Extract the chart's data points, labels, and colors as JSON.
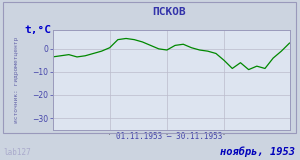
{
  "title": "ПСКОВ",
  "ylabel": "t,°C",
  "xlabel_range": "01.11.1953 – 30.11.1953",
  "footer": "ноябрь, 1953",
  "watermark": "lab127",
  "source_text": "источник: гидрометцентр",
  "line_color": "#008800",
  "bg_color": "#ccd4e0",
  "plot_bg_color": "#dde4f0",
  "border_color": "#9999bb",
  "title_color": "#3333aa",
  "footer_color": "#0000bb",
  "ylabel_color": "#0000cc",
  "source_color": "#6666aa",
  "tick_color": "#4444aa",
  "watermark_color": "#aaaacc",
  "grid_color": "#bbbbcc",
  "ylim": [
    -35,
    8
  ],
  "yticks": [
    0,
    -10,
    -20,
    -30
  ],
  "days": [
    1,
    2,
    3,
    4,
    5,
    6,
    7,
    8,
    9,
    10,
    11,
    12,
    13,
    14,
    15,
    16,
    17,
    18,
    19,
    20,
    21,
    22,
    23,
    24,
    25,
    26,
    27,
    28,
    29,
    30
  ],
  "temps": [
    -3.5,
    -3.0,
    -2.5,
    -3.5,
    -3.0,
    -2.0,
    -1.0,
    0.5,
    4.0,
    4.5,
    4.0,
    3.0,
    1.5,
    0.0,
    -0.5,
    1.5,
    2.0,
    0.5,
    -0.5,
    -1.0,
    -2.0,
    -5.0,
    -8.5,
    -6.0,
    -9.0,
    -7.5,
    -8.5,
    -4.0,
    -1.0,
    2.5
  ]
}
